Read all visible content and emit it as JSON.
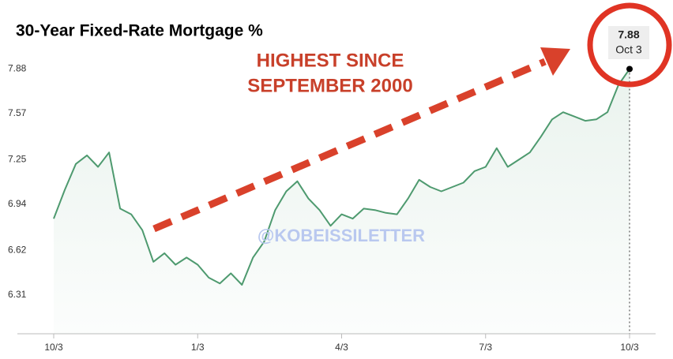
{
  "chart_data": {
    "type": "line",
    "title": "30-Year Fixed-Rate Mortgage %",
    "annotations": [
      "HIGHEST SINCE",
      "SEPTEMBER 2000"
    ],
    "watermark": "@KOBEISSILETTER",
    "tooltip_date": "Oct 3",
    "color": "#4e9a6f",
    "categories": [
      "10/3",
      null,
      null,
      null,
      null,
      null,
      null,
      null,
      null,
      null,
      null,
      null,
      null,
      "1/3",
      null,
      null,
      null,
      null,
      null,
      null,
      null,
      null,
      null,
      null,
      null,
      null,
      "4/3",
      null,
      null,
      null,
      null,
      null,
      null,
      null,
      null,
      null,
      null,
      null,
      null,
      "7/3",
      null,
      null,
      null,
      null,
      null,
      null,
      null,
      null,
      null,
      null,
      null,
      null,
      "10/3"
    ],
    "values": [
      6.84,
      7.04,
      7.22,
      7.28,
      7.2,
      7.3,
      6.91,
      6.87,
      6.76,
      6.54,
      6.6,
      6.52,
      6.57,
      6.52,
      6.43,
      6.39,
      6.46,
      6.38,
      6.57,
      6.68,
      6.9,
      7.03,
      7.1,
      6.98,
      6.9,
      6.79,
      6.87,
      6.84,
      6.91,
      6.9,
      6.88,
      6.87,
      6.98,
      7.11,
      7.06,
      7.03,
      7.06,
      7.09,
      7.17,
      7.2,
      7.33,
      7.2,
      7.25,
      7.3,
      7.41,
      7.53,
      7.58,
      7.55,
      7.52,
      7.53,
      7.58,
      7.77,
      7.88
    ],
    "ylim": [
      6.04,
      8.25
    ],
    "yticks": [
      6.31,
      6.62,
      6.94,
      7.25,
      7.57,
      7.88
    ],
    "grid": false
  }
}
